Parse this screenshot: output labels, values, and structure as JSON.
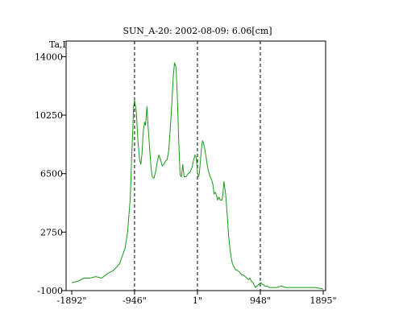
{
  "chart_data": {
    "type": "line",
    "title": "SUN_A-20: 2002-08-09: 6.06[cm]",
    "ylabel": "Ta,I",
    "xlabel": "",
    "x_ticks": [
      {
        "value": -1892,
        "label": "-1892\""
      },
      {
        "value": -946,
        "label": "-946\""
      },
      {
        "value": 1,
        "label": "1\""
      },
      {
        "value": 948,
        "label": "948\""
      },
      {
        "value": 1895,
        "label": "1895\""
      }
    ],
    "y_ticks": [
      14000,
      10250,
      6500,
      2750,
      -1000
    ],
    "xlim": [
      -1892,
      1895
    ],
    "ylim": [
      -1000,
      15000
    ],
    "grid": false,
    "vlines_dashed": [
      -946,
      1,
      948
    ],
    "series": [
      {
        "color": "#1a9a1a",
        "x": [
          -1892,
          -1800,
          -1710,
          -1620,
          -1530,
          -1440,
          -1350,
          -1262,
          -1175,
          -1090,
          -1050,
          -1010,
          -990,
          -975,
          -960,
          -946,
          -920,
          -895,
          -870,
          -850,
          -833,
          -815,
          -795,
          -780,
          -760,
          -740,
          -720,
          -700,
          -680,
          -655,
          -630,
          -605,
          -580,
          -555,
          -530,
          -505,
          -480,
          -455,
          -430,
          -405,
          -385,
          -365,
          -345,
          -320,
          -300,
          -280,
          -260,
          -240,
          -220,
          -200,
          -170,
          -140,
          -110,
          -80,
          -55,
          -35,
          -15,
          1,
          15,
          30,
          45,
          60,
          75,
          90,
          110,
          130,
          150,
          170,
          195,
          215,
          235,
          250,
          270,
          290,
          305,
          325,
          345,
          370,
          385,
          400,
          425,
          450,
          470,
          495,
          510,
          530,
          555,
          580,
          605,
          630,
          650,
          670,
          695,
          720,
          745,
          770,
          790,
          815,
          840,
          860,
          875,
          890,
          900,
          910,
          920,
          930,
          948,
          962,
          980,
          995,
          1010,
          1030,
          1050,
          1080,
          1110,
          1150,
          1200,
          1260,
          1330,
          1420,
          1510,
          1600,
          1680,
          1760,
          1840,
          1895
        ],
        "y": [
          -500,
          -400,
          -200,
          -200,
          -100,
          -200,
          100,
          300,
          700,
          1700,
          2800,
          5000,
          7500,
          9000,
          10800,
          11200,
          10500,
          8600,
          7400,
          7100,
          7800,
          9200,
          9800,
          9600,
          10800,
          9400,
          8200,
          7000,
          6300,
          6200,
          6600,
          7200,
          7700,
          7400,
          7000,
          7100,
          7300,
          7400,
          8000,
          9600,
          11000,
          12600,
          13600,
          13300,
          11200,
          8500,
          6400,
          6300,
          7100,
          6300,
          6300,
          6500,
          6600,
          6900,
          7400,
          7700,
          7500,
          6600,
          6300,
          6500,
          7300,
          8000,
          8600,
          8500,
          8100,
          7600,
          7000,
          6600,
          6300,
          6100,
          5800,
          5200,
          5300,
          5100,
          4800,
          5000,
          4800,
          4800,
          5200,
          6000,
          5200,
          3800,
          2500,
          1500,
          1100,
          700,
          500,
          300,
          300,
          200,
          100,
          0,
          0,
          -100,
          -200,
          -300,
          -200,
          -400,
          -500,
          -700,
          -800,
          -700,
          -700,
          -700,
          -600,
          -600,
          -500,
          -500,
          -600,
          -600,
          -700,
          -700,
          -700,
          -800,
          -800,
          -800,
          -800,
          -700,
          -800,
          -800,
          -800,
          -800,
          -800,
          -800,
          -850,
          -900
        ]
      }
    ]
  }
}
